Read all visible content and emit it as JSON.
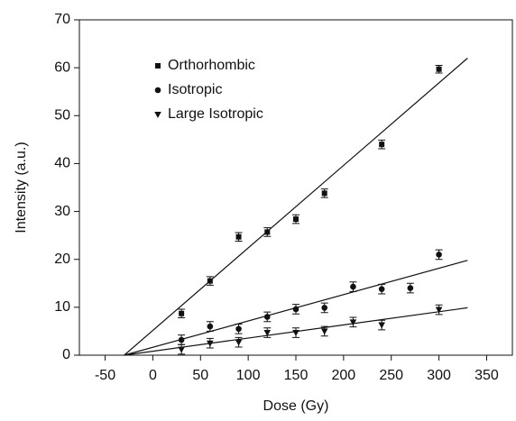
{
  "chart_data": {
    "type": "scatter",
    "xlabel": "Dose (Gy)",
    "ylabel": "Intensity (a.u.)",
    "xlim": [
      -77,
      377
    ],
    "ylim": [
      0,
      70
    ],
    "xticks": [
      -50,
      0,
      50,
      100,
      150,
      200,
      250,
      300,
      350
    ],
    "yticks": [
      0,
      10,
      20,
      30,
      40,
      50,
      60,
      70
    ],
    "legend": "upper-left",
    "series": [
      {
        "name": "Orthorhombic",
        "marker": "square",
        "color": "#111111",
        "x": [
          30,
          60,
          90,
          120,
          150,
          180,
          240,
          300
        ],
        "values": [
          8.7,
          15.5,
          24.7,
          25.7,
          28.4,
          33.8,
          44,
          59.7
        ],
        "errors": [
          0.9,
          0.9,
          0.9,
          0.9,
          0.9,
          0.9,
          0.9,
          0.8
        ],
        "fit": {
          "x": [
            -30,
            330
          ],
          "y": [
            0,
            62
          ]
        }
      },
      {
        "name": "Isotropic",
        "marker": "circle",
        "color": "#111111",
        "x": [
          30,
          60,
          90,
          120,
          150,
          180,
          210,
          240,
          270,
          300
        ],
        "values": [
          3.2,
          6,
          5.5,
          8,
          9.6,
          9.9,
          14.3,
          13.8,
          14,
          21
        ],
        "errors": [
          1,
          1,
          1,
          1,
          1,
          1,
          1,
          1,
          1,
          1
        ],
        "fit": {
          "x": [
            -30,
            330
          ],
          "y": [
            0,
            19.8
          ]
        }
      },
      {
        "name": "Large Isotropic",
        "marker": "triangle-down",
        "color": "#111111",
        "x": [
          30,
          60,
          90,
          120,
          150,
          180,
          210,
          240,
          300
        ],
        "values": [
          1.2,
          2.5,
          2.7,
          4.7,
          4.7,
          5,
          6.9,
          6.3,
          9.5
        ],
        "errors": [
          1,
          1,
          1,
          1,
          1,
          1,
          1,
          1,
          1
        ],
        "fit": {
          "x": [
            -30,
            330
          ],
          "y": [
            0,
            9.9
          ]
        }
      }
    ]
  }
}
